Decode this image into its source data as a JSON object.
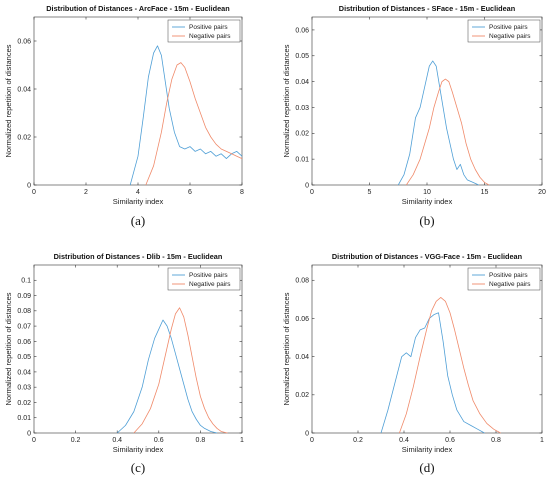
{
  "chart_data": [
    {
      "type": "line",
      "title": "Distribution of Distances - ArcFace - 15m - Euclidean",
      "xlabel": "Similarity index",
      "ylabel": "Normalized repetition of distances",
      "xlim": [
        0,
        8
      ],
      "ylim": [
        0,
        0.07
      ],
      "xticks": [
        "0",
        "2",
        "4",
        "6",
        "8"
      ],
      "yticks": [
        "0",
        "0.02",
        "0.04",
        "0.06"
      ],
      "legend_position": "top-right",
      "grid": false,
      "caption": "(a)",
      "series": [
        {
          "name": "Positive pairs",
          "color": "#4f9fd6",
          "x": [
            3.7,
            4.0,
            4.2,
            4.4,
            4.6,
            4.75,
            4.9,
            5.05,
            5.2,
            5.4,
            5.6,
            5.8,
            6.0,
            6.2,
            6.4,
            6.6,
            6.8,
            7.0,
            7.2,
            7.4,
            7.6,
            7.8,
            8.0
          ],
          "y": [
            0.0,
            0.012,
            0.028,
            0.045,
            0.055,
            0.058,
            0.054,
            0.043,
            0.032,
            0.022,
            0.016,
            0.015,
            0.016,
            0.014,
            0.015,
            0.013,
            0.014,
            0.012,
            0.013,
            0.011,
            0.013,
            0.014,
            0.012
          ]
        },
        {
          "name": "Negative pairs",
          "color": "#f08a6a",
          "x": [
            4.3,
            4.6,
            4.9,
            5.1,
            5.3,
            5.5,
            5.65,
            5.8,
            6.0,
            6.2,
            6.4,
            6.6,
            6.8,
            7.0,
            7.2,
            7.4,
            7.6,
            7.8,
            8.0
          ],
          "y": [
            0.0,
            0.008,
            0.022,
            0.034,
            0.044,
            0.05,
            0.051,
            0.049,
            0.043,
            0.036,
            0.03,
            0.024,
            0.02,
            0.017,
            0.015,
            0.014,
            0.013,
            0.012,
            0.011
          ]
        }
      ]
    },
    {
      "type": "line",
      "title": "Distribution of Distances - SFace - 15m - Euclidean",
      "xlabel": "Similarity index",
      "ylabel": "Normalized repetition of distances",
      "xlim": [
        0,
        20
      ],
      "ylim": [
        0,
        0.065
      ],
      "xticks": [
        "0",
        "5",
        "10",
        "15",
        "20"
      ],
      "yticks": [
        "0",
        "0.01",
        "0.02",
        "0.03",
        "0.04",
        "0.05",
        "0.06"
      ],
      "legend_position": "top-right",
      "grid": false,
      "caption": "(b)",
      "series": [
        {
          "name": "Positive pairs",
          "color": "#4f9fd6",
          "x": [
            7.5,
            8.0,
            8.5,
            9.0,
            9.4,
            9.8,
            10.2,
            10.5,
            10.8,
            11.1,
            11.4,
            11.7,
            12.0,
            12.3,
            12.6,
            12.9,
            13.2,
            13.5,
            14.0,
            14.5
          ],
          "y": [
            0.0,
            0.004,
            0.012,
            0.026,
            0.03,
            0.038,
            0.046,
            0.048,
            0.046,
            0.038,
            0.03,
            0.022,
            0.016,
            0.01,
            0.006,
            0.008,
            0.004,
            0.002,
            0.001,
            0.0
          ]
        },
        {
          "name": "Negative pairs",
          "color": "#f08a6a",
          "x": [
            8.2,
            8.8,
            9.4,
            9.8,
            10.2,
            10.6,
            11.0,
            11.3,
            11.6,
            11.9,
            12.2,
            12.6,
            13.0,
            13.4,
            13.8,
            14.2,
            14.6,
            15.0,
            15.4
          ],
          "y": [
            0.0,
            0.004,
            0.01,
            0.016,
            0.022,
            0.03,
            0.036,
            0.04,
            0.041,
            0.04,
            0.036,
            0.03,
            0.024,
            0.016,
            0.01,
            0.006,
            0.003,
            0.001,
            0.0
          ]
        }
      ]
    },
    {
      "type": "line",
      "title": "Distribution of Distances - Dlib - 15m - Euclidean",
      "xlabel": "Similarity index",
      "ylabel": "Normalized repetition of distances",
      "xlim": [
        0,
        1
      ],
      "ylim": [
        0,
        0.11
      ],
      "xticks": [
        "0",
        "0.2",
        "0.4",
        "0.6",
        "0.8",
        "1"
      ],
      "yticks": [
        "0",
        "0.01",
        "0.02",
        "0.03",
        "0.04",
        "0.05",
        "0.06",
        "0.07",
        "0.08",
        "0.09",
        "0.1"
      ],
      "legend_position": "top-right",
      "grid": false,
      "caption": "(c)",
      "series": [
        {
          "name": "Positive pairs",
          "color": "#4f9fd6",
          "x": [
            0.4,
            0.44,
            0.48,
            0.52,
            0.55,
            0.58,
            0.6,
            0.62,
            0.64,
            0.66,
            0.68,
            0.7,
            0.72,
            0.74,
            0.76,
            0.78,
            0.8,
            0.82,
            0.85,
            0.88
          ],
          "y": [
            0.0,
            0.005,
            0.014,
            0.03,
            0.048,
            0.062,
            0.068,
            0.074,
            0.07,
            0.062,
            0.052,
            0.042,
            0.032,
            0.022,
            0.014,
            0.009,
            0.005,
            0.003,
            0.001,
            0.0
          ]
        },
        {
          "name": "Negative pairs",
          "color": "#f08a6a",
          "x": [
            0.48,
            0.52,
            0.56,
            0.6,
            0.63,
            0.66,
            0.68,
            0.7,
            0.72,
            0.74,
            0.76,
            0.78,
            0.8,
            0.82,
            0.84,
            0.86,
            0.88,
            0.9,
            0.93
          ],
          "y": [
            0.0,
            0.006,
            0.016,
            0.032,
            0.05,
            0.068,
            0.078,
            0.082,
            0.076,
            0.064,
            0.05,
            0.036,
            0.024,
            0.016,
            0.01,
            0.006,
            0.003,
            0.001,
            0.0
          ]
        }
      ]
    },
    {
      "type": "line",
      "title": "Distribution of Distances - VGG-Face - 15m - Euclidean",
      "xlabel": "Similarity index",
      "ylabel": "Normalized repetition of distances",
      "xlim": [
        0,
        1
      ],
      "ylim": [
        0,
        0.088
      ],
      "xticks": [
        "0",
        "0.2",
        "0.4",
        "0.6",
        "0.8",
        "1"
      ],
      "yticks": [
        "0",
        "0.02",
        "0.04",
        "0.06",
        "0.08"
      ],
      "legend_position": "top-right",
      "grid": false,
      "caption": "(d)",
      "series": [
        {
          "name": "Positive pairs",
          "color": "#4f9fd6",
          "x": [
            0.3,
            0.33,
            0.36,
            0.39,
            0.41,
            0.43,
            0.45,
            0.47,
            0.49,
            0.51,
            0.53,
            0.55,
            0.57,
            0.59,
            0.61,
            0.63,
            0.66,
            0.69,
            0.72,
            0.75
          ],
          "y": [
            0.0,
            0.012,
            0.026,
            0.04,
            0.042,
            0.04,
            0.05,
            0.054,
            0.055,
            0.06,
            0.062,
            0.063,
            0.048,
            0.03,
            0.02,
            0.012,
            0.006,
            0.004,
            0.002,
            0.0
          ]
        },
        {
          "name": "Negative pairs",
          "color": "#f08a6a",
          "x": [
            0.38,
            0.41,
            0.44,
            0.47,
            0.5,
            0.52,
            0.54,
            0.56,
            0.58,
            0.6,
            0.62,
            0.64,
            0.66,
            0.68,
            0.7,
            0.73,
            0.76,
            0.79,
            0.82
          ],
          "y": [
            0.0,
            0.01,
            0.024,
            0.04,
            0.055,
            0.064,
            0.069,
            0.071,
            0.069,
            0.063,
            0.054,
            0.044,
            0.034,
            0.025,
            0.017,
            0.01,
            0.005,
            0.002,
            0.0
          ]
        }
      ]
    }
  ]
}
